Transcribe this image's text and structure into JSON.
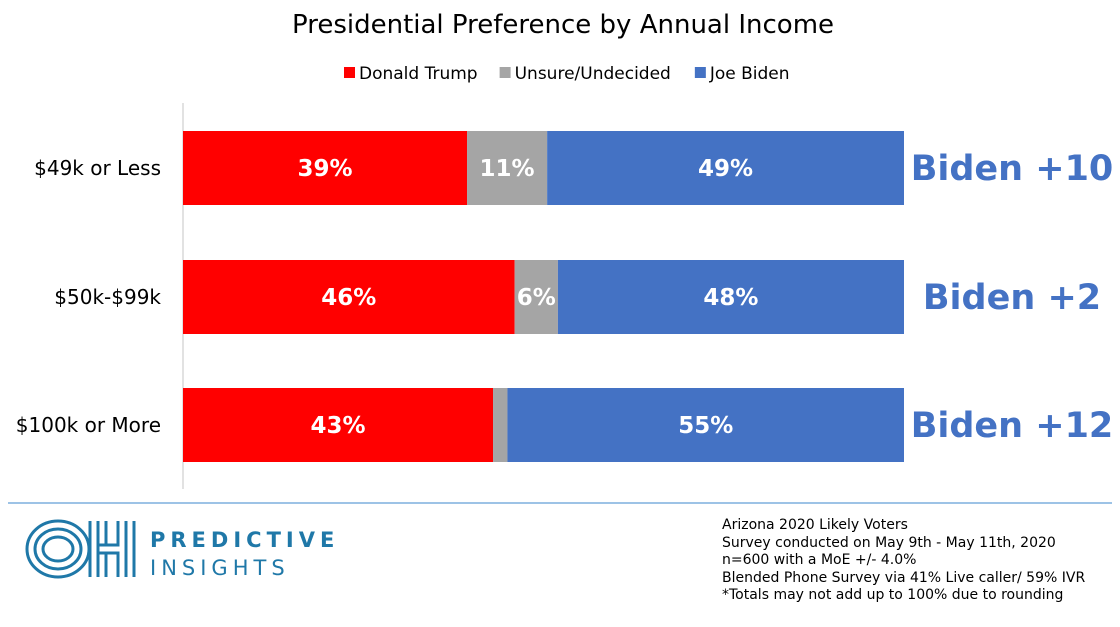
{
  "chart_data": {
    "type": "bar",
    "orientation": "horizontal",
    "stacked": true,
    "title": "Presidential Preference by Annual Income",
    "legend_placement": "top",
    "categories": [
      "$49k or Less",
      "$50k-$99k",
      "$100k or More"
    ],
    "series": [
      {
        "name": "Donald Trump",
        "color": "#ff0000",
        "values": [
          39,
          46,
          43
        ],
        "labels": [
          "39%",
          "46%",
          "43%"
        ]
      },
      {
        "name": "Unsure/Undecided",
        "color": "#a5a5a5",
        "values": [
          11,
          6,
          2
        ],
        "labels": [
          "11%",
          "6%",
          ""
        ]
      },
      {
        "name": "Joe Biden",
        "color": "#4472c4",
        "values": [
          49,
          48,
          55
        ],
        "labels": [
          "49%",
          "48%",
          "55%"
        ]
      }
    ],
    "margins": [
      "Biden +10",
      "Biden +2",
      "Biden +12"
    ],
    "margin_color": "#4472c4",
    "grid": false
  },
  "brand": {
    "word1": "PREDICTIVE",
    "word2": "INSIGHTS",
    "color": "#1f78a8"
  },
  "notes": [
    "Arizona 2020 Likely Voters",
    "Survey conducted on May 9th - May 11th, 2020",
    "n=600 with a MoE +/- 4.0%",
    "Blended Phone Survey via 41% Live caller/ 59% IVR",
    "*Totals may not add up to 100% due to rounding"
  ]
}
